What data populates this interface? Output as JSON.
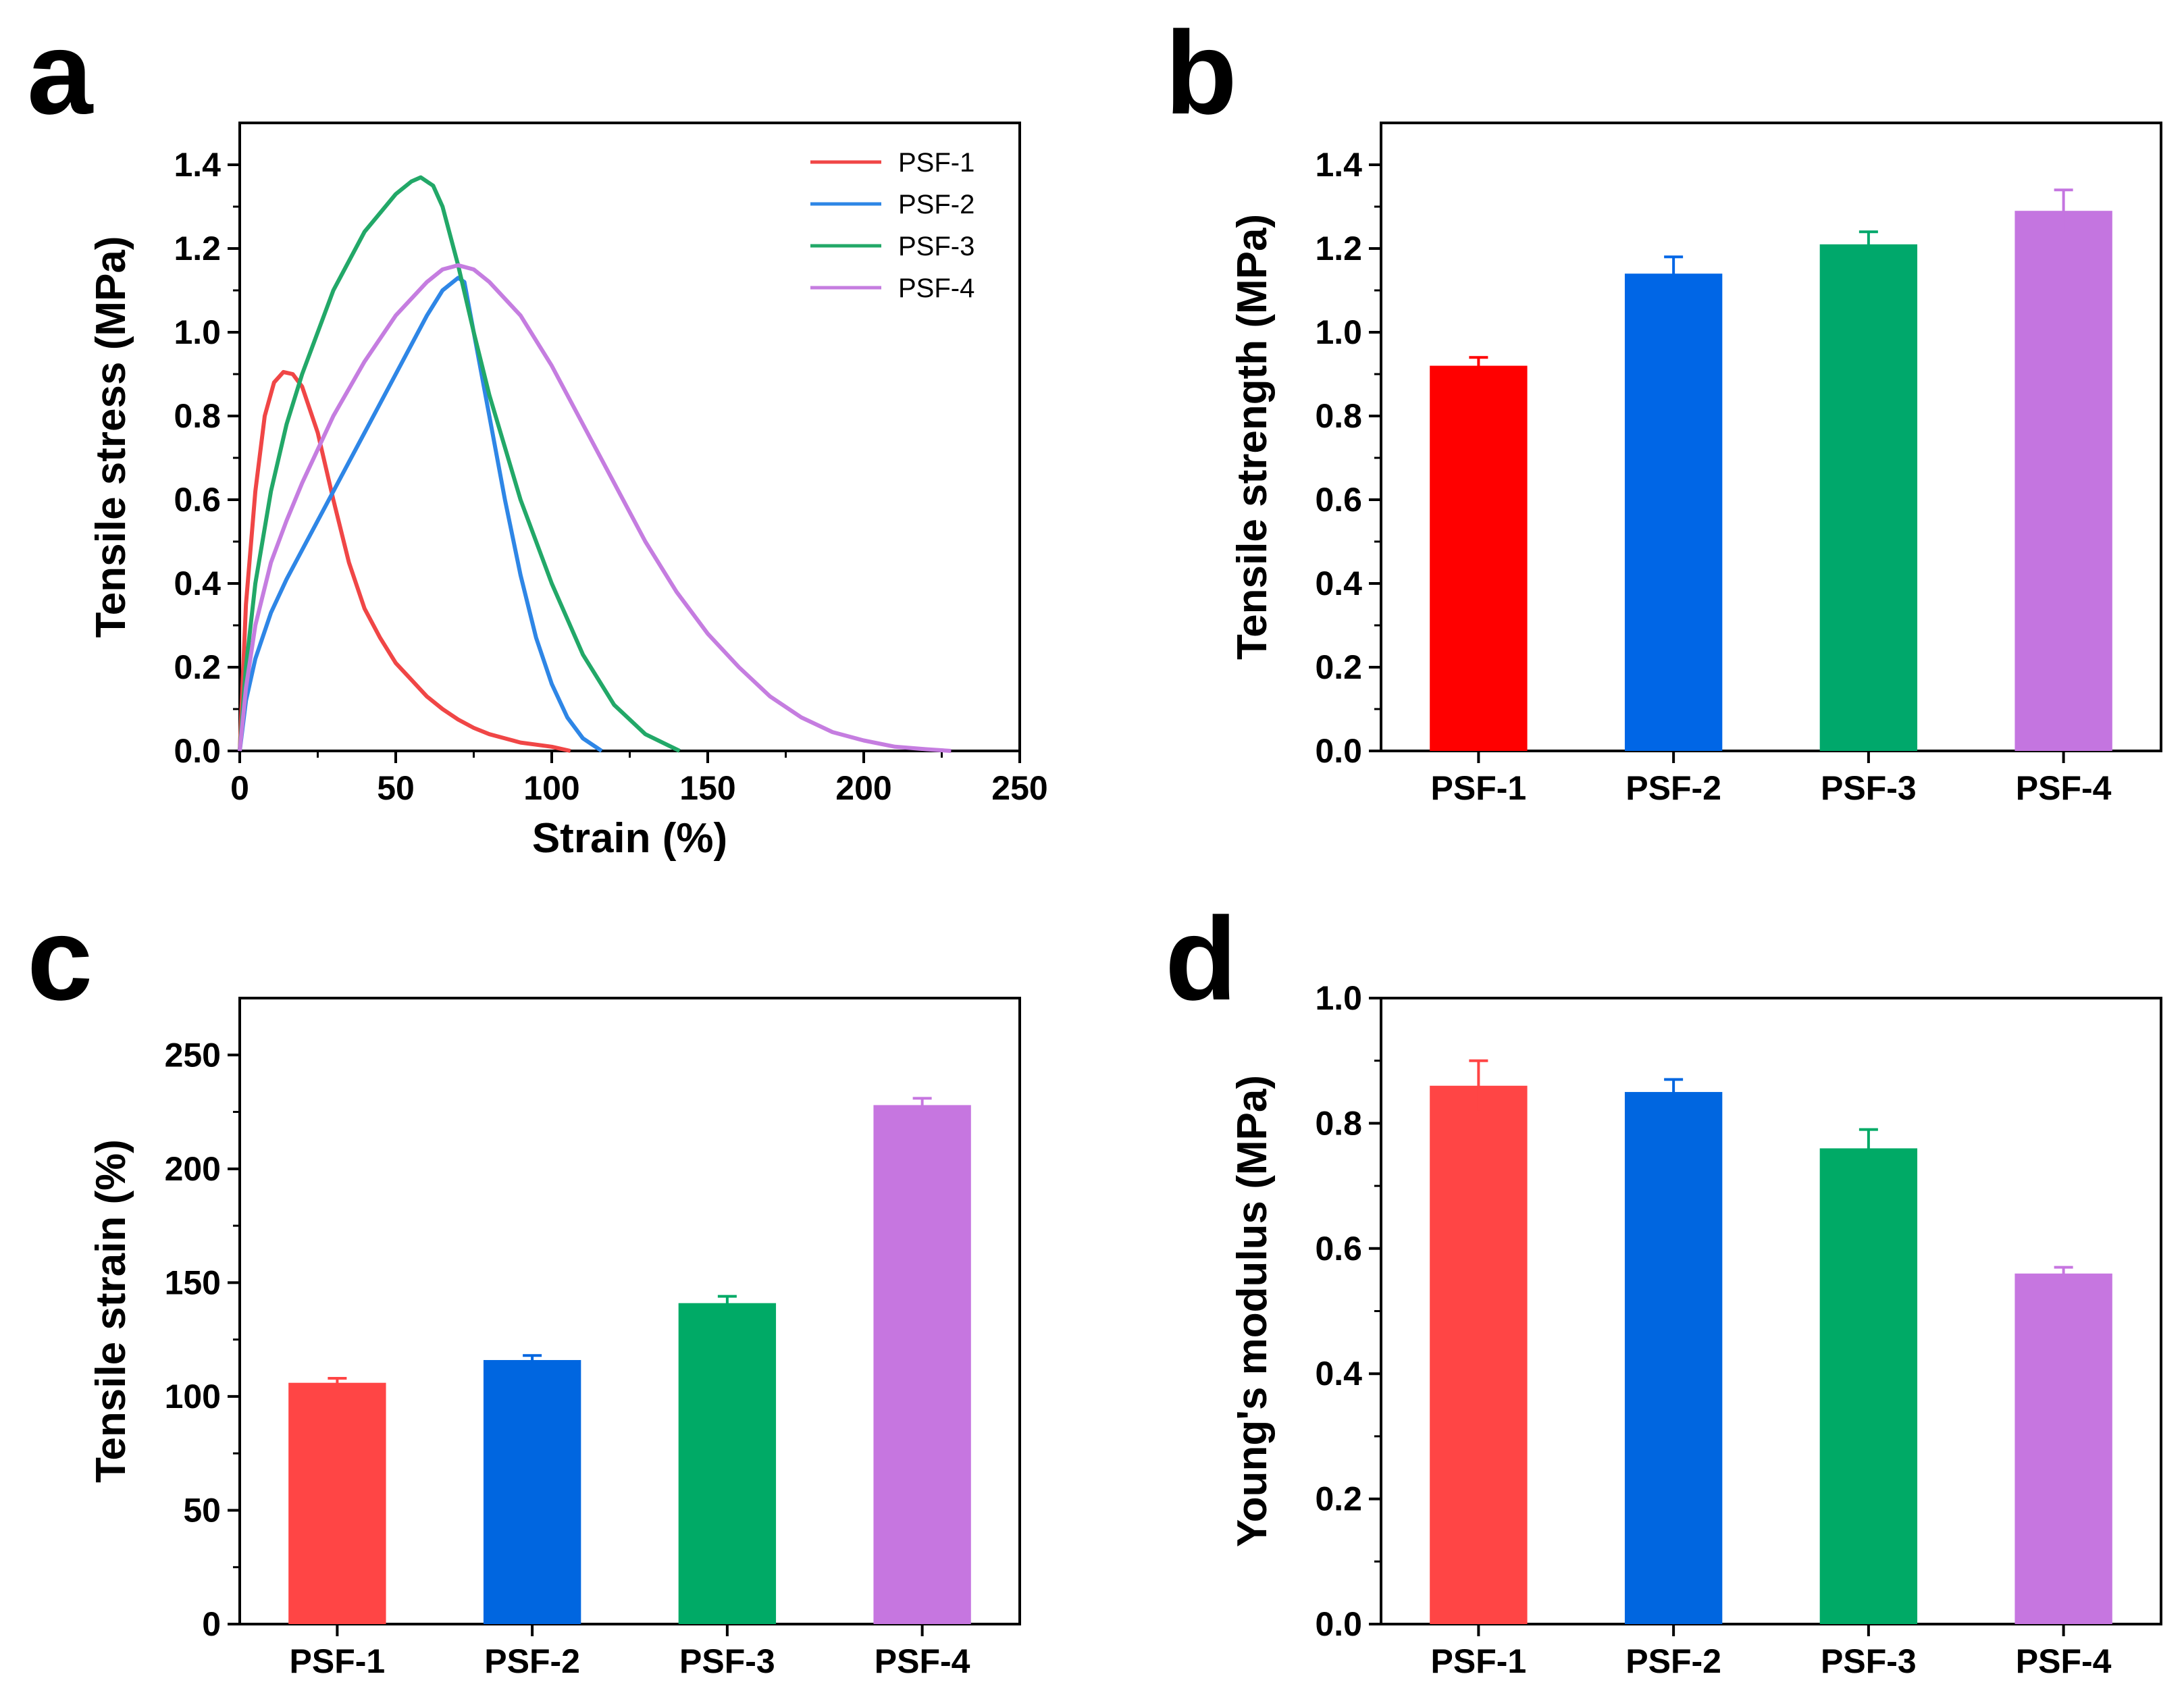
{
  "figure": {
    "panel_letters": [
      "a",
      "b",
      "c",
      "d"
    ]
  },
  "chart_data": [
    {
      "panel": "a",
      "type": "line",
      "title": "",
      "xlabel": "Strain (%)",
      "ylabel": "Tensile stress (MPa)",
      "xlim": [
        0,
        250
      ],
      "ylim": [
        0,
        1.5
      ],
      "xticks": [
        0,
        50,
        100,
        150,
        200,
        250
      ],
      "yticks": [
        0.0,
        0.2,
        0.4,
        0.6,
        0.8,
        1.0,
        1.2,
        1.4
      ],
      "xtick_labels": [
        "0",
        "50",
        "100",
        "150",
        "200",
        "250"
      ],
      "ytick_labels": [
        "0.0",
        "0.2",
        "0.4",
        "0.6",
        "0.8",
        "1.0",
        "1.2",
        "1.4"
      ],
      "legend_position": "top-right",
      "series": [
        {
          "name": "PSF-1",
          "color": "#f04646",
          "x": [
            0,
            2,
            5,
            8,
            11,
            14,
            17,
            20,
            25,
            30,
            35,
            40,
            45,
            50,
            55,
            60,
            65,
            70,
            75,
            80,
            85,
            90,
            95,
            100,
            106
          ],
          "y": [
            0,
            0.35,
            0.62,
            0.8,
            0.88,
            0.905,
            0.9,
            0.87,
            0.76,
            0.6,
            0.45,
            0.34,
            0.27,
            0.21,
            0.17,
            0.13,
            0.1,
            0.075,
            0.055,
            0.04,
            0.03,
            0.02,
            0.015,
            0.01,
            0
          ]
        },
        {
          "name": "PSF-2",
          "color": "#2e86e6",
          "x": [
            0,
            2,
            5,
            10,
            15,
            20,
            30,
            40,
            50,
            60,
            65,
            70,
            72,
            75,
            80,
            85,
            90,
            95,
            100,
            105,
            110,
            116
          ],
          "y": [
            0,
            0.12,
            0.22,
            0.33,
            0.41,
            0.48,
            0.62,
            0.76,
            0.9,
            1.04,
            1.1,
            1.13,
            1.12,
            1.0,
            0.8,
            0.6,
            0.42,
            0.27,
            0.16,
            0.08,
            0.03,
            0
          ]
        },
        {
          "name": "PSF-3",
          "color": "#22a868",
          "x": [
            0,
            2,
            5,
            10,
            15,
            20,
            30,
            40,
            50,
            55,
            58,
            62,
            65,
            70,
            75,
            80,
            90,
            100,
            110,
            120,
            130,
            141
          ],
          "y": [
            0,
            0.2,
            0.4,
            0.62,
            0.78,
            0.9,
            1.1,
            1.24,
            1.33,
            1.36,
            1.37,
            1.35,
            1.3,
            1.16,
            1.0,
            0.85,
            0.6,
            0.4,
            0.23,
            0.11,
            0.04,
            0
          ]
        },
        {
          "name": "PSF-4",
          "color": "#c57de0",
          "x": [
            0,
            2,
            5,
            10,
            15,
            20,
            30,
            40,
            50,
            60,
            65,
            70,
            75,
            80,
            90,
            100,
            110,
            120,
            130,
            140,
            150,
            160,
            170,
            180,
            190,
            200,
            210,
            220,
            228
          ],
          "y": [
            0,
            0.15,
            0.3,
            0.45,
            0.55,
            0.64,
            0.8,
            0.93,
            1.04,
            1.12,
            1.15,
            1.16,
            1.15,
            1.12,
            1.04,
            0.92,
            0.78,
            0.64,
            0.5,
            0.38,
            0.28,
            0.2,
            0.13,
            0.08,
            0.045,
            0.025,
            0.01,
            0.004,
            0
          ]
        }
      ]
    },
    {
      "panel": "b",
      "type": "bar",
      "title": "",
      "xlabel": "",
      "ylabel": "Tensile strength (MPa)",
      "ylim": [
        0,
        1.5
      ],
      "yticks": [
        0.0,
        0.2,
        0.4,
        0.6,
        0.8,
        1.0,
        1.2,
        1.4
      ],
      "ytick_labels": [
        "0.0",
        "0.2",
        "0.4",
        "0.6",
        "0.8",
        "1.0",
        "1.2",
        "1.4"
      ],
      "categories": [
        "PSF-1",
        "PSF-2",
        "PSF-3",
        "PSF-4"
      ],
      "values": [
        0.92,
        1.14,
        1.21,
        1.29
      ],
      "errors": [
        0.02,
        0.04,
        0.03,
        0.05
      ],
      "colors": [
        "#ff0000",
        "#0066e6",
        "#00a86b",
        "#c475e0"
      ]
    },
    {
      "panel": "c",
      "type": "bar",
      "title": "",
      "xlabel": "",
      "ylabel": "Tensile strain (%)",
      "ylim": [
        0,
        275
      ],
      "yticks": [
        0,
        50,
        100,
        150,
        200,
        250
      ],
      "ytick_labels": [
        "0",
        "50",
        "100",
        "150",
        "200",
        "250"
      ],
      "categories": [
        "PSF-1",
        "PSF-2",
        "PSF-3",
        "PSF-4"
      ],
      "values": [
        106,
        116,
        141,
        228
      ],
      "errors": [
        2,
        2,
        3,
        3
      ],
      "colors": [
        "#ff4545",
        "#0066e0",
        "#00aa66",
        "#c676e0"
      ]
    },
    {
      "panel": "d",
      "type": "bar",
      "title": "",
      "xlabel": "",
      "ylabel": "Young's modulus (MPa)",
      "ylim": [
        0,
        1.0
      ],
      "yticks": [
        0.0,
        0.2,
        0.4,
        0.6,
        0.8,
        1.0
      ],
      "ytick_labels": [
        "0.0",
        "0.2",
        "0.4",
        "0.6",
        "0.8",
        "1.0"
      ],
      "categories": [
        "PSF-1",
        "PSF-2",
        "PSF-3",
        "PSF-4"
      ],
      "values": [
        0.86,
        0.85,
        0.76,
        0.56
      ],
      "errors": [
        0.04,
        0.02,
        0.03,
        0.01
      ],
      "colors": [
        "#ff4545",
        "#0066e0",
        "#00aa66",
        "#c676e0"
      ]
    }
  ]
}
